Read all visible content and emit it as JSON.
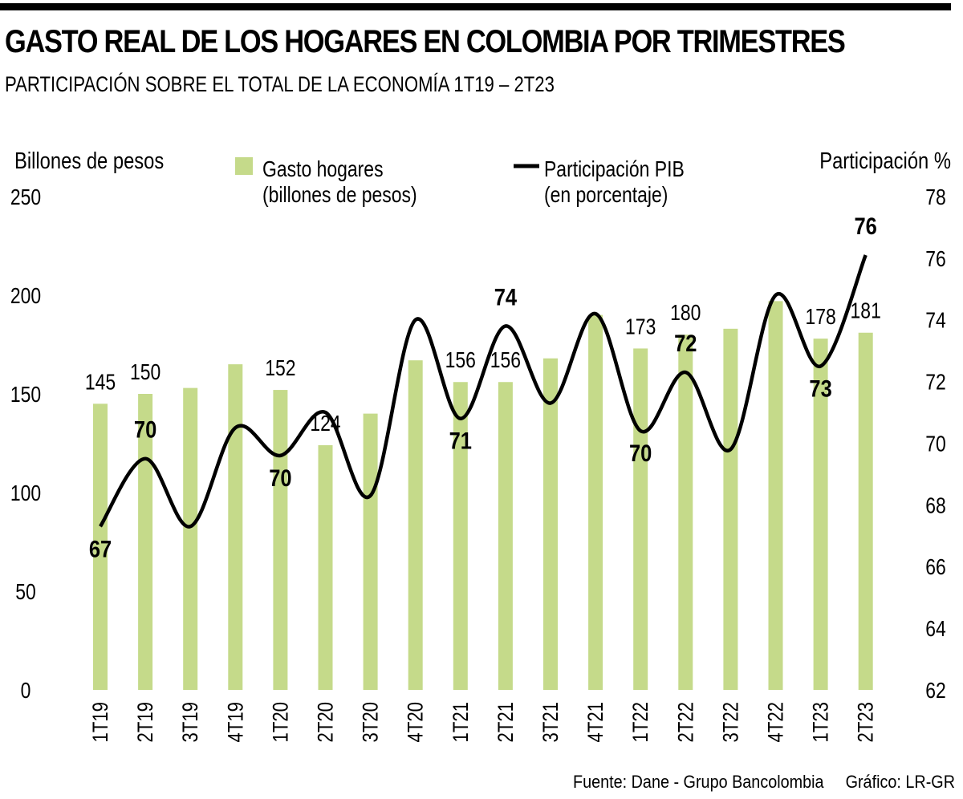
{
  "title": "GASTO REAL DE LOS HOGARES EN COLOMBIA POR TRIMESTRES",
  "subtitle": "PARTICIPACIÓN SOBRE EL TOTAL DE LA ECONOMÍA 1T19 – 2T23",
  "footer": {
    "source": "Fuente: Dane - Grupo Bancolombia",
    "credit": "Gráfico: LR-GR"
  },
  "chart_data": {
    "type": "bar+line",
    "categories": [
      "1T19",
      "2T19",
      "3T19",
      "4T19",
      "1T20",
      "2T20",
      "3T20",
      "4T20",
      "1T21",
      "2T21",
      "3T21",
      "4T21",
      "1T22",
      "2T22",
      "3T22",
      "4T22",
      "1T23",
      "2T23"
    ],
    "ylabel_left": "Billones de pesos",
    "ylabel_right": "Participación %",
    "ylim_left": [
      0,
      250
    ],
    "yticks_left": [
      0,
      50,
      100,
      150,
      200,
      250
    ],
    "ylim_right": [
      62,
      78
    ],
    "yticks_right": [
      62,
      64,
      66,
      68,
      70,
      72,
      74,
      76,
      78
    ],
    "grid": false,
    "legend_placement": "top",
    "series": [
      {
        "name": "Gasto hogares\n(billones de pesos)",
        "legend_lines": [
          "Gasto hogares",
          "(billones de pesos)"
        ],
        "kind": "bar",
        "axis": "left",
        "color": "#c5da8a",
        "values": [
          145,
          150,
          153,
          165,
          152,
          124,
          140,
          167,
          156,
          156,
          168,
          190,
          173,
          180,
          183,
          197,
          178,
          181
        ],
        "labels": [
          "145",
          "150",
          null,
          null,
          "152",
          "124",
          null,
          null,
          "156",
          "156",
          null,
          null,
          "173",
          "180",
          null,
          null,
          "178",
          "181"
        ]
      },
      {
        "name": "Participación PIB\n(en porcentaje)",
        "legend_lines": [
          "Participación PIB",
          "(en porcentaje)"
        ],
        "kind": "line",
        "axis": "right",
        "color": "#000000",
        "values": [
          67.3,
          69.5,
          67.3,
          70.5,
          69.6,
          71.0,
          68.3,
          74.0,
          70.8,
          73.8,
          71.3,
          74.2,
          70.4,
          72.3,
          69.8,
          74.8,
          72.5,
          76.1
        ],
        "labels": [
          "67",
          "70",
          null,
          null,
          "70",
          null,
          null,
          null,
          "71",
          "74",
          null,
          null,
          "70",
          "72",
          null,
          null,
          "73",
          "76"
        ]
      }
    ]
  }
}
